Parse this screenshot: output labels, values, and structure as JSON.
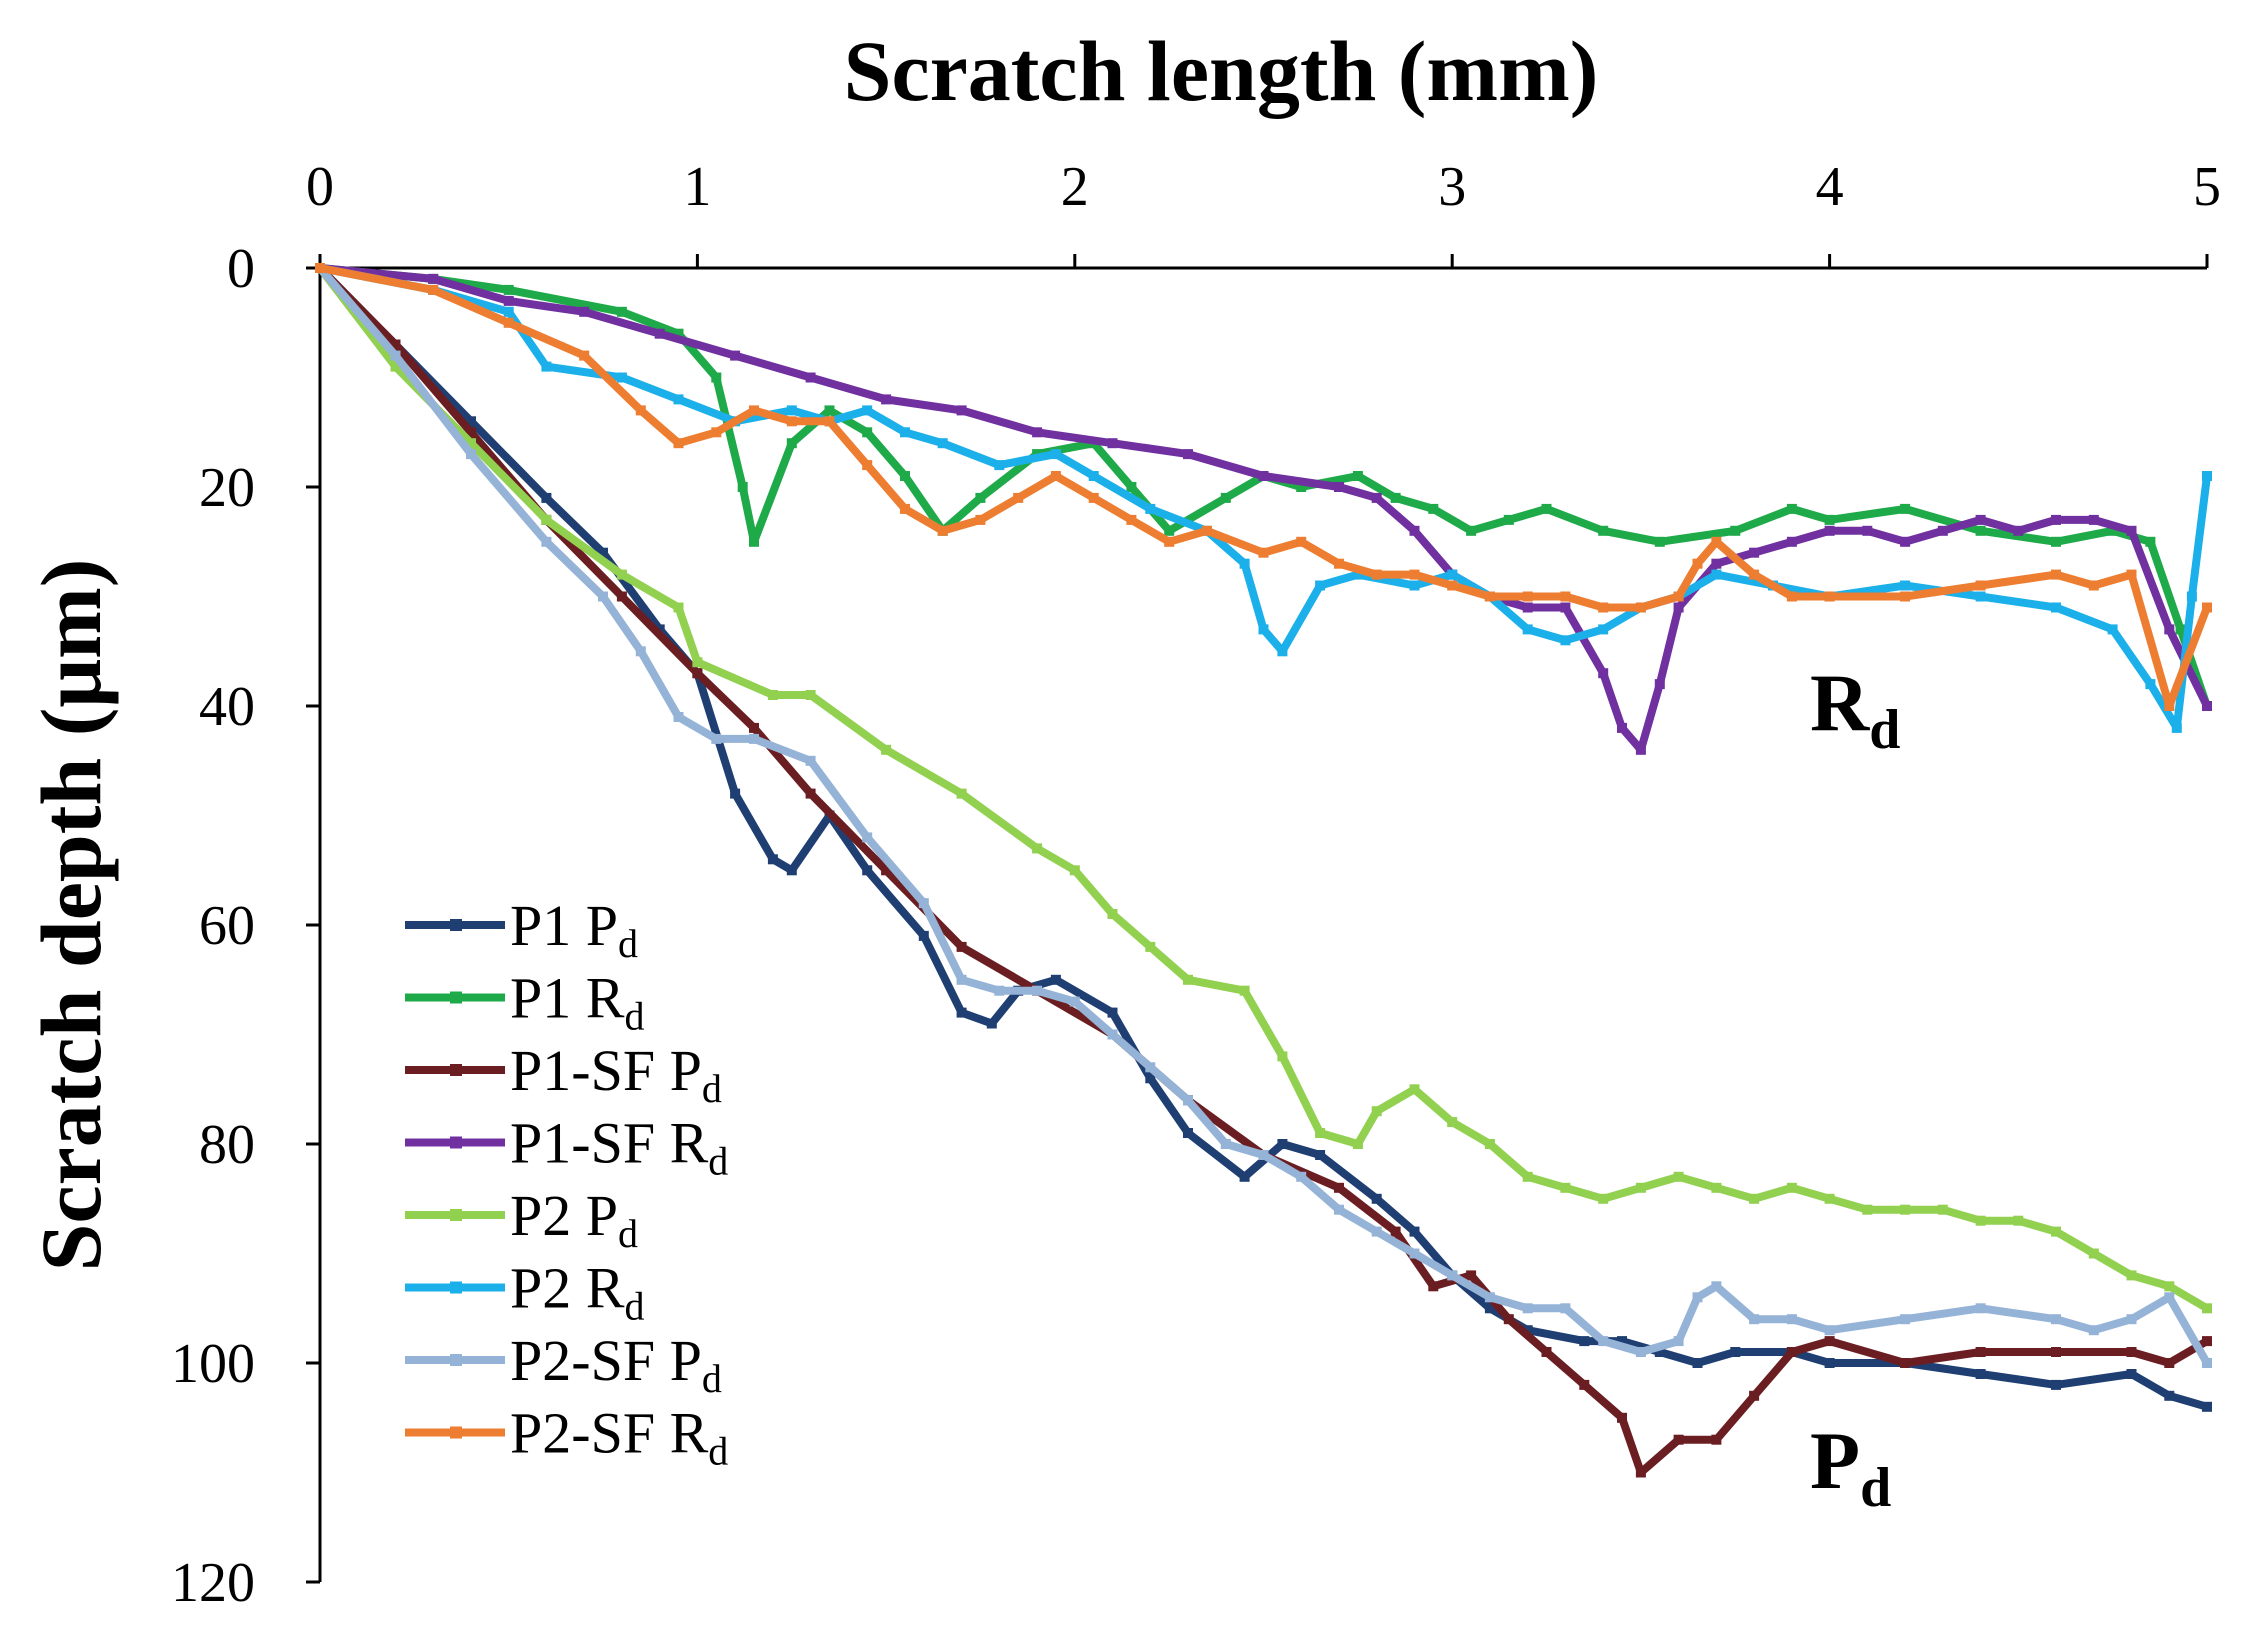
{
  "chart_data": {
    "type": "line",
    "xlabel": "Scratch length (mm)",
    "ylabel": "Scratch depth (μm)",
    "xlim": [
      0,
      5
    ],
    "ylim": [
      0,
      120
    ],
    "y_inverted": true,
    "x_axis_position": "top",
    "xticks": [
      "0",
      "1",
      "2",
      "3",
      "4",
      "5"
    ],
    "yticks": [
      "0",
      "20",
      "40",
      "60",
      "80",
      "100",
      "120"
    ],
    "grid": false,
    "legend_position": "bottom-left",
    "annotations": [
      {
        "main": "R",
        "sub": "d"
      },
      {
        "main": "P",
        "sub": "d"
      }
    ],
    "series": [
      {
        "name": "P1 Pd",
        "label_main": "P1 P",
        "label_sub": "d",
        "color": "#1F3F73",
        "x": [
          0,
          0.2,
          0.4,
          0.6,
          0.75,
          0.9,
          1.0,
          1.1,
          1.2,
          1.25,
          1.35,
          1.45,
          1.6,
          1.7,
          1.78,
          1.85,
          1.95,
          2.1,
          2.2,
          2.3,
          2.45,
          2.55,
          2.65,
          2.8,
          2.9,
          3.0,
          3.1,
          3.2,
          3.35,
          3.45,
          3.55,
          3.65,
          3.75,
          3.9,
          4.0,
          4.2,
          4.4,
          4.6,
          4.8,
          4.9,
          5.0
        ],
        "y": [
          0,
          7,
          14,
          21,
          26,
          33,
          37,
          48,
          54,
          55,
          50,
          55,
          61,
          68,
          69,
          66,
          65,
          68,
          74,
          79,
          83,
          80,
          81,
          85,
          88,
          92,
          95,
          97,
          98,
          98,
          99,
          100,
          99,
          99,
          100,
          100,
          101,
          102,
          101,
          103,
          104
        ]
      },
      {
        "name": "P1 Rd",
        "label_main": "P1 R",
        "label_sub": "d",
        "color": "#1FAA4A",
        "x": [
          0,
          0.3,
          0.5,
          0.8,
          0.95,
          1.05,
          1.12,
          1.15,
          1.25,
          1.35,
          1.45,
          1.55,
          1.65,
          1.75,
          1.9,
          2.05,
          2.15,
          2.25,
          2.4,
          2.5,
          2.6,
          2.75,
          2.85,
          2.95,
          3.05,
          3.15,
          3.25,
          3.4,
          3.55,
          3.75,
          3.9,
          4.0,
          4.2,
          4.4,
          4.6,
          4.75,
          4.85,
          4.93,
          5.0
        ],
        "y": [
          0,
          1,
          2,
          4,
          6,
          10,
          20,
          25,
          16,
          13,
          15,
          19,
          24,
          21,
          17,
          16,
          20,
          24,
          21,
          19,
          20,
          19,
          21,
          22,
          24,
          23,
          22,
          24,
          25,
          24,
          22,
          23,
          22,
          24,
          25,
          24,
          25,
          33,
          40
        ]
      },
      {
        "name": "P1-SF Pd",
        "label_main": "P1-SF P",
        "label_sub": "d",
        "color": "#6B1E22",
        "x": [
          0,
          0.2,
          0.4,
          0.6,
          0.8,
          1.0,
          1.15,
          1.3,
          1.5,
          1.7,
          1.9,
          2.1,
          2.3,
          2.5,
          2.7,
          2.85,
          2.95,
          3.05,
          3.15,
          3.25,
          3.35,
          3.45,
          3.5,
          3.6,
          3.7,
          3.8,
          3.9,
          4.0,
          4.2,
          4.4,
          4.6,
          4.8,
          4.9,
          5.0
        ],
        "y": [
          0,
          7,
          15,
          23,
          30,
          37,
          42,
          48,
          55,
          62,
          66,
          70,
          76,
          81,
          84,
          88,
          93,
          92,
          96,
          99,
          102,
          105,
          110,
          107,
          107,
          103,
          99,
          98,
          100,
          99,
          99,
          99,
          100,
          98
        ]
      },
      {
        "name": "P1-SF Rd",
        "label_main": "P1-SF R",
        "label_sub": "d",
        "color": "#7030A0",
        "x": [
          0,
          0.3,
          0.5,
          0.7,
          0.9,
          1.1,
          1.3,
          1.5,
          1.7,
          1.9,
          2.1,
          2.3,
          2.5,
          2.7,
          2.8,
          2.9,
          3.0,
          3.1,
          3.2,
          3.3,
          3.4,
          3.45,
          3.5,
          3.55,
          3.6,
          3.7,
          3.8,
          3.9,
          4.0,
          4.1,
          4.2,
          4.3,
          4.4,
          4.5,
          4.6,
          4.7,
          4.8,
          4.9,
          5.0
        ],
        "y": [
          0,
          1,
          3,
          4,
          6,
          8,
          10,
          12,
          13,
          15,
          16,
          17,
          19,
          20,
          21,
          24,
          28,
          30,
          31,
          31,
          37,
          42,
          44,
          38,
          31,
          27,
          26,
          25,
          24,
          24,
          25,
          24,
          23,
          24,
          23,
          23,
          24,
          33,
          40
        ]
      },
      {
        "name": "P2 Pd",
        "label_main": "P2 P",
        "label_sub": "d",
        "color": "#92D050",
        "x": [
          0,
          0.2,
          0.4,
          0.6,
          0.8,
          0.95,
          1.0,
          1.2,
          1.3,
          1.5,
          1.7,
          1.9,
          2.0,
          2.1,
          2.2,
          2.3,
          2.45,
          2.55,
          2.65,
          2.75,
          2.8,
          2.9,
          3.0,
          3.1,
          3.2,
          3.3,
          3.4,
          3.5,
          3.6,
          3.7,
          3.8,
          3.9,
          4.0,
          4.1,
          4.2,
          4.3,
          4.4,
          4.5,
          4.6,
          4.7,
          4.8,
          4.9,
          5.0
        ],
        "y": [
          0,
          9,
          16,
          23,
          28,
          31,
          36,
          39,
          39,
          44,
          48,
          53,
          55,
          59,
          62,
          65,
          66,
          72,
          79,
          80,
          77,
          75,
          78,
          80,
          83,
          84,
          85,
          84,
          83,
          84,
          85,
          84,
          85,
          86,
          86,
          86,
          87,
          87,
          88,
          90,
          92,
          93,
          95
        ]
      },
      {
        "name": "P2 Rd",
        "label_main": "P2 R",
        "label_sub": "d",
        "color": "#1CB0EA",
        "x": [
          0,
          0.3,
          0.5,
          0.6,
          0.8,
          0.95,
          1.1,
          1.25,
          1.35,
          1.45,
          1.55,
          1.65,
          1.8,
          1.95,
          2.05,
          2.2,
          2.35,
          2.45,
          2.5,
          2.55,
          2.65,
          2.75,
          2.9,
          3.0,
          3.1,
          3.2,
          3.3,
          3.4,
          3.5,
          3.6,
          3.7,
          3.85,
          4.0,
          4.2,
          4.4,
          4.6,
          4.75,
          4.85,
          4.92,
          4.96,
          5.0
        ],
        "y": [
          0,
          2,
          4,
          9,
          10,
          12,
          14,
          13,
          14,
          13,
          15,
          16,
          18,
          17,
          19,
          22,
          24,
          27,
          33,
          35,
          29,
          28,
          29,
          28,
          30,
          33,
          34,
          33,
          31,
          30,
          28,
          29,
          30,
          29,
          30,
          31,
          33,
          38,
          42,
          30,
          19
        ]
      },
      {
        "name": "P2-SF Pd",
        "label_main": "P2-SF P",
        "label_sub": "d",
        "color": "#95B3D7",
        "x": [
          0,
          0.2,
          0.4,
          0.6,
          0.75,
          0.85,
          0.95,
          1.05,
          1.15,
          1.3,
          1.45,
          1.6,
          1.7,
          1.8,
          1.9,
          2.0,
          2.1,
          2.2,
          2.3,
          2.4,
          2.5,
          2.6,
          2.7,
          2.8,
          2.9,
          3.0,
          3.1,
          3.2,
          3.3,
          3.4,
          3.5,
          3.6,
          3.65,
          3.7,
          3.8,
          3.9,
          4.0,
          4.2,
          4.4,
          4.6,
          4.7,
          4.8,
          4.9,
          5.0
        ],
        "y": [
          0,
          8,
          17,
          25,
          30,
          35,
          41,
          43,
          43,
          45,
          52,
          58,
          65,
          66,
          66,
          67,
          70,
          73,
          76,
          80,
          81,
          83,
          86,
          88,
          90,
          92,
          94,
          95,
          95,
          98,
          99,
          98,
          94,
          93,
          96,
          96,
          97,
          96,
          95,
          96,
          97,
          96,
          94,
          100
        ]
      },
      {
        "name": "P2-SF Rd",
        "label_main": "P2-SF R",
        "label_sub": "d",
        "color": "#ED7D31",
        "x": [
          0,
          0.3,
          0.5,
          0.7,
          0.85,
          0.95,
          1.05,
          1.15,
          1.25,
          1.35,
          1.45,
          1.55,
          1.65,
          1.75,
          1.85,
          1.95,
          2.05,
          2.15,
          2.25,
          2.35,
          2.5,
          2.6,
          2.7,
          2.8,
          2.9,
          3.0,
          3.1,
          3.2,
          3.3,
          3.4,
          3.5,
          3.6,
          3.65,
          3.7,
          3.8,
          3.9,
          4.0,
          4.2,
          4.4,
          4.6,
          4.7,
          4.8,
          4.9,
          5.0
        ],
        "y": [
          0,
          2,
          5,
          8,
          13,
          16,
          15,
          13,
          14,
          14,
          18,
          22,
          24,
          23,
          21,
          19,
          21,
          23,
          25,
          24,
          26,
          25,
          27,
          28,
          28,
          29,
          30,
          30,
          30,
          31,
          31,
          30,
          27,
          25,
          28,
          30,
          30,
          30,
          29,
          28,
          29,
          28,
          40,
          31
        ]
      }
    ]
  }
}
